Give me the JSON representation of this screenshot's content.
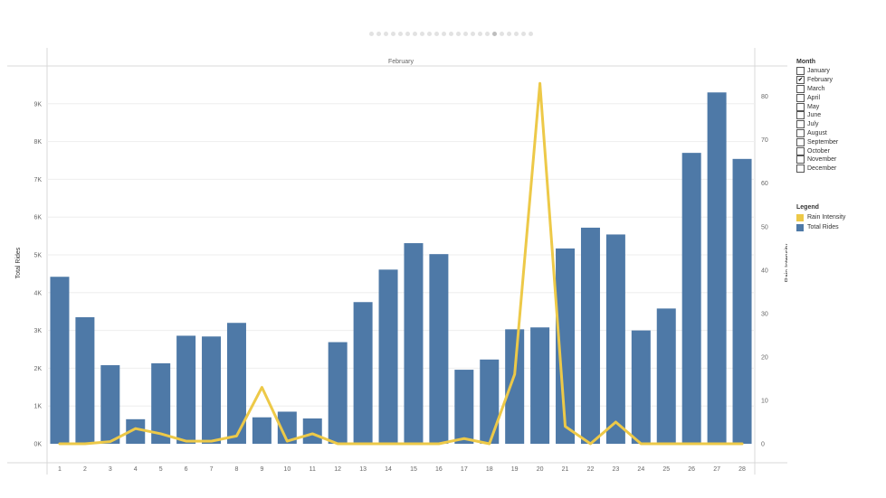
{
  "colors": {
    "bar": "#4e79a7",
    "line": "#edc948",
    "gridline": "#eeeeee",
    "axis_text": "#666666"
  },
  "pager": {
    "count": 23,
    "active_index": 17
  },
  "chart_data": {
    "type": "bar",
    "panel_header": "February",
    "categories": [
      "1",
      "2",
      "3",
      "4",
      "5",
      "6",
      "7",
      "8",
      "9",
      "10",
      "11",
      "12",
      "13",
      "14",
      "15",
      "16",
      "17",
      "18",
      "19",
      "20",
      "21",
      "22",
      "23",
      "24",
      "25",
      "26",
      "27",
      "28"
    ],
    "series": [
      {
        "name": "Total Rides",
        "type": "bar",
        "axis": "left",
        "values": [
          4420,
          3350,
          2080,
          650,
          2130,
          2860,
          2840,
          3200,
          700,
          850,
          670,
          2690,
          3750,
          4610,
          5310,
          5020,
          1960,
          2230,
          3030,
          3080,
          5170,
          5720,
          5540,
          3000,
          3580,
          7700,
          9300,
          7540
        ]
      },
      {
        "name": "Rain Intensity",
        "type": "line",
        "axis": "right",
        "values": [
          0,
          0,
          0.5,
          3.5,
          2.3,
          0.6,
          0.6,
          1.8,
          13,
          0.6,
          2.3,
          0,
          0,
          0,
          0,
          0,
          1.2,
          0,
          16,
          83,
          4,
          0,
          5,
          0,
          0,
          0,
          0,
          0
        ]
      }
    ],
    "ylabel": "Total Rides",
    "y2label": "Rain Intensity",
    "ylim": [
      0,
      10000
    ],
    "y2lim": [
      0,
      87
    ],
    "yticks": [
      0,
      1000,
      2000,
      3000,
      4000,
      5000,
      6000,
      7000,
      8000,
      9000
    ],
    "ytick_labels": [
      "0K",
      "1K",
      "2K",
      "3K",
      "4K",
      "5K",
      "6K",
      "7K",
      "8K",
      "9K"
    ],
    "y2ticks": [
      0,
      10,
      20,
      30,
      40,
      50,
      60,
      70,
      80
    ],
    "grid": true
  },
  "filter": {
    "title": "Month",
    "items": [
      {
        "label": "January",
        "checked": false
      },
      {
        "label": "February",
        "checked": true
      },
      {
        "label": "March",
        "checked": false
      },
      {
        "label": "April",
        "checked": false
      },
      {
        "label": "May",
        "checked": false
      },
      {
        "label": "June",
        "checked": false
      },
      {
        "label": "July",
        "checked": false
      },
      {
        "label": "August",
        "checked": false
      },
      {
        "label": "September",
        "checked": false
      },
      {
        "label": "October",
        "checked": false
      },
      {
        "label": "November",
        "checked": false
      },
      {
        "label": "December",
        "checked": false
      }
    ]
  },
  "legend": {
    "title": "Legend",
    "items": [
      {
        "label": "Rain Intensity",
        "color": "#edc948"
      },
      {
        "label": "Total Rides",
        "color": "#4e79a7"
      }
    ]
  }
}
